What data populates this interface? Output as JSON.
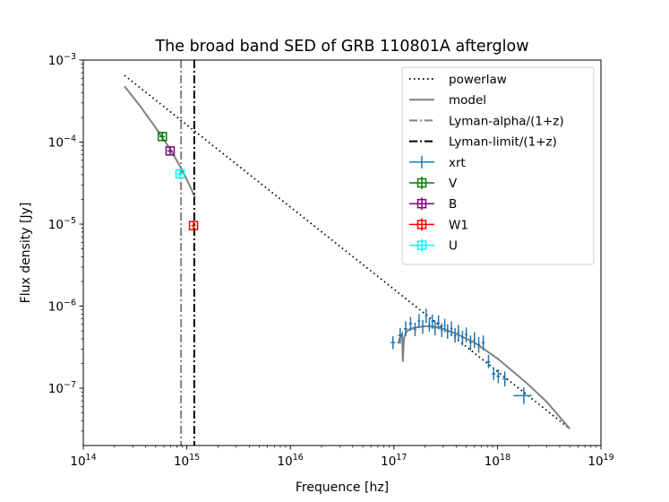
{
  "chart_data": {
    "type": "scatter",
    "title": "The broad band SED of GRB 110801A afterglow",
    "xlabel": "Frequence [hz]",
    "ylabel": "Flux density [Jy]",
    "xscale": "log",
    "yscale": "log",
    "xlim": [
      100000000000000.0,
      1e+19
    ],
    "ylim": [
      2e-08,
      0.001
    ],
    "grid": false,
    "legend_position": "upper right",
    "x_ticks": [
      {
        "value": 100000000000000.0,
        "base": "10",
        "exp": "14"
      },
      {
        "value": 1000000000000000.0,
        "base": "10",
        "exp": "15"
      },
      {
        "value": 1e+16,
        "base": "10",
        "exp": "16"
      },
      {
        "value": 1e+17,
        "base": "10",
        "exp": "17"
      },
      {
        "value": 1e+18,
        "base": "10",
        "exp": "18"
      },
      {
        "value": 1e+19,
        "base": "10",
        "exp": "19"
      }
    ],
    "y_ticks": [
      {
        "value": 1e-07,
        "base": "10",
        "exp": "−7"
      },
      {
        "value": 1e-06,
        "base": "10",
        "exp": "−6"
      },
      {
        "value": 1e-05,
        "base": "10",
        "exp": "−5"
      },
      {
        "value": 0.0001,
        "base": "10",
        "exp": "−4"
      },
      {
        "value": 0.001,
        "base": "10",
        "exp": "−3"
      }
    ],
    "series": [
      {
        "name": "powerlaw",
        "kind": "line",
        "style": "dotted",
        "color": "#000000",
        "x": [
          250000000000000.0,
          5e+18
        ],
        "y": [
          0.00065,
          3.2e-08
        ]
      },
      {
        "name": "model",
        "kind": "line",
        "style": "solid",
        "color": "#808080",
        "segments": [
          {
            "x": [
              250000000000000.0,
              350000000000000.0,
              500000000000000.0,
              700000000000000.0,
              900000000000000.0,
              1100000000000000.0,
              1200000000000000.0
            ],
            "y": [
              0.00048,
              0.00028,
              0.00015,
              8e-05,
              4.6e-05,
              2.7e-05,
              2.1e-05
            ]
          },
          {
            "x": [
              1.1e+17,
              1.15e+17,
              1.2e+17,
              1.22e+17,
              1.25e+17,
              1.3e+17,
              1.4e+17,
              1.6e+17,
              2e+17,
              2.5e+17,
              3e+17,
              4e+17,
              6e+17,
              8e+17,
              1e+18,
              1.5e+18,
              2e+18,
              3e+18,
              5e+18
            ],
            "y": [
              3.5e-07,
              4.2e-07,
              4.6e-07,
              2.1e-07,
              4e-07,
              4.7e-07,
              5.2e-07,
              5.5e-07,
              5.7e-07,
              5.6e-07,
              5.3e-07,
              4.6e-07,
              3.6e-07,
              2.8e-07,
              2.3e-07,
              1.5e-07,
              1.1e-07,
              6.8e-08,
              3.2e-08
            ]
          }
        ]
      },
      {
        "name": "Lyman-alpha/(1+z)",
        "kind": "vline",
        "style": "dashdot",
        "color": "#808080",
        "x": 880000000000000.0
      },
      {
        "name": "Lyman-limit/(1+z)",
        "kind": "vline",
        "style": "dashdot",
        "color": "#000000",
        "x": 1180000000000000.0
      },
      {
        "name": "xrt",
        "kind": "errorbar",
        "color": "#1f77b4",
        "points": [
          {
            "x": 9.8e+16,
            "y": 3.6e-07,
            "xlo": 9.3e+16,
            "xhi": 1.03e+17,
            "ylo": 3e-07,
            "yhi": 4.3e-07
          },
          {
            "x": 1.15e+17,
            "y": 4.4e-07,
            "xlo": 1.1e+17,
            "xhi": 1.2e+17,
            "ylo": 3.5e-07,
            "yhi": 5.4e-07
          },
          {
            "x": 1.3e+17,
            "y": 5.3e-07,
            "xlo": 1.25e+17,
            "xhi": 1.35e+17,
            "ylo": 4.3e-07,
            "yhi": 6.5e-07
          },
          {
            "x": 1.45e+17,
            "y": 6.1e-07,
            "xlo": 1.4e+17,
            "xhi": 1.5e+17,
            "ylo": 5e-07,
            "yhi": 7.4e-07
          },
          {
            "x": 1.6e+17,
            "y": 5.2e-07,
            "xlo": 1.55e+17,
            "xhi": 1.65e+17,
            "ylo": 4.3e-07,
            "yhi": 6.3e-07
          },
          {
            "x": 1.75e+17,
            "y": 6.6e-07,
            "xlo": 1.7e+17,
            "xhi": 1.8e+17,
            "ylo": 5.4e-07,
            "yhi": 8e-07
          },
          {
            "x": 1.9e+17,
            "y": 5.6e-07,
            "xlo": 1.85e+17,
            "xhi": 1.95e+17,
            "ylo": 4.6e-07,
            "yhi": 6.8e-07
          },
          {
            "x": 2.05e+17,
            "y": 7.6e-07,
            "xlo": 2e+17,
            "xhi": 2.1e+17,
            "ylo": 6.2e-07,
            "yhi": 9.3e-07
          },
          {
            "x": 2.2e+17,
            "y": 5.9e-07,
            "xlo": 2.15e+17,
            "xhi": 2.25e+17,
            "ylo": 4.9e-07,
            "yhi": 7.1e-07
          },
          {
            "x": 2.35e+17,
            "y": 6.5e-07,
            "xlo": 2.3e+17,
            "xhi": 2.4e+17,
            "ylo": 5.3e-07,
            "yhi": 7.9e-07
          },
          {
            "x": 2.5e+17,
            "y": 5.4e-07,
            "xlo": 2.45e+17,
            "xhi": 2.55e+17,
            "ylo": 4.4e-07,
            "yhi": 6.6e-07
          },
          {
            "x": 2.7e+17,
            "y": 6.3e-07,
            "xlo": 2.63e+17,
            "xhi": 2.77e+17,
            "ylo": 5.2e-07,
            "yhi": 7.7e-07
          },
          {
            "x": 2.9e+17,
            "y": 5.1e-07,
            "xlo": 2.83e+17,
            "xhi": 2.97e+17,
            "ylo": 4.2e-07,
            "yhi": 6.2e-07
          },
          {
            "x": 3.1e+17,
            "y": 5.8e-07,
            "xlo": 3.03e+17,
            "xhi": 3.17e+17,
            "ylo": 4.8e-07,
            "yhi": 7e-07
          },
          {
            "x": 3.3e+17,
            "y": 4.9e-07,
            "xlo": 3.22e+17,
            "xhi": 3.38e+17,
            "ylo": 4e-07,
            "yhi": 6e-07
          },
          {
            "x": 3.6e+17,
            "y": 5.3e-07,
            "xlo": 3.5e+17,
            "xhi": 3.7e+17,
            "ylo": 4.3e-07,
            "yhi": 6.5e-07
          },
          {
            "x": 3.9e+17,
            "y": 4.4e-07,
            "xlo": 3.8e+17,
            "xhi": 4e+17,
            "ylo": 3.6e-07,
            "yhi": 5.4e-07
          },
          {
            "x": 4.2e+17,
            "y": 4.8e-07,
            "xlo": 4.1e+17,
            "xhi": 4.3e+17,
            "ylo": 3.9e-07,
            "yhi": 5.9e-07
          },
          {
            "x": 4.6e+17,
            "y": 4.1e-07,
            "xlo": 4.5e+17,
            "xhi": 4.7e+17,
            "ylo": 3.3e-07,
            "yhi": 5e-07
          },
          {
            "x": 5e+17,
            "y": 4.5e-07,
            "xlo": 4.85e+17,
            "xhi": 5.15e+17,
            "ylo": 3.6e-07,
            "yhi": 5.5e-07
          },
          {
            "x": 5.5e+17,
            "y": 3.6e-07,
            "xlo": 5.35e+17,
            "xhi": 5.65e+17,
            "ylo": 2.9e-07,
            "yhi": 4.4e-07
          },
          {
            "x": 6e+17,
            "y": 3.9e-07,
            "xlo": 5.85e+17,
            "xhi": 6.15e+17,
            "ylo": 3.1e-07,
            "yhi": 4.8e-07
          },
          {
            "x": 6.6e+17,
            "y": 3.4e-07,
            "xlo": 6.4e+17,
            "xhi": 6.8e+17,
            "ylo": 2.7e-07,
            "yhi": 4.2e-07
          },
          {
            "x": 7.3e+17,
            "y": 3.6e-07,
            "xlo": 7.05e+17,
            "xhi": 7.55e+17,
            "ylo": 2.9e-07,
            "yhi": 4.4e-07
          },
          {
            "x": 8.2e+17,
            "y": 2.1e-07,
            "xlo": 7.9e+17,
            "xhi": 8.5e+17,
            "ylo": 1.75e-07,
            "yhi": 2.55e-07
          },
          {
            "x": 9.2e+17,
            "y": 1.5e-07,
            "xlo": 8.8e+17,
            "xhi": 9.6e+17,
            "ylo": 1.25e-07,
            "yhi": 1.8e-07
          },
          {
            "x": 1.02e+18,
            "y": 1.4e-07,
            "xlo": 9.8e+17,
            "xhi": 1.06e+18,
            "ylo": 1.15e-07,
            "yhi": 1.7e-07
          },
          {
            "x": 1.18e+18,
            "y": 1.3e-07,
            "xlo": 1.12e+18,
            "xhi": 1.24e+18,
            "ylo": 1.05e-07,
            "yhi": 1.6e-07
          },
          {
            "x": 1.8e+18,
            "y": 8.1e-08,
            "xlo": 1.43e+18,
            "xhi": 2.15e+18,
            "ylo": 6.4e-08,
            "yhi": 1.02e-07
          }
        ]
      },
      {
        "name": "V",
        "kind": "errorbar",
        "marker": "square",
        "color": "#008000",
        "points": [
          {
            "x": 580000000000000.0,
            "y": 0.000117,
            "xlo": 545000000000000.0,
            "xhi": 615000000000000.0,
            "ylo": 0.000105,
            "yhi": 0.00013
          }
        ]
      },
      {
        "name": "B",
        "kind": "errorbar",
        "marker": "square",
        "color": "#800080",
        "points": [
          {
            "x": 690000000000000.0,
            "y": 7.8e-05,
            "xlo": 650000000000000.0,
            "xhi": 730000000000000.0,
            "ylo": 7e-05,
            "yhi": 8.7e-05
          }
        ]
      },
      {
        "name": "W1",
        "kind": "errorbar",
        "marker": "square",
        "color": "#ff0000",
        "points": [
          {
            "x": 1160000000000000.0,
            "y": 9.6e-06,
            "xlo": 1100000000000000.0,
            "xhi": 1220000000000000.0,
            "ylo": 8.5e-06,
            "yhi": 1.08e-05
          }
        ]
      },
      {
        "name": "U",
        "kind": "errorbar",
        "marker": "square",
        "color": "#00ffff",
        "points": [
          {
            "x": 860000000000000.0,
            "y": 4.1e-05,
            "xlo": 810000000000000.0,
            "xhi": 910000000000000.0,
            "ylo": 3.6e-05,
            "yhi": 4.6e-05
          }
        ]
      }
    ]
  }
}
